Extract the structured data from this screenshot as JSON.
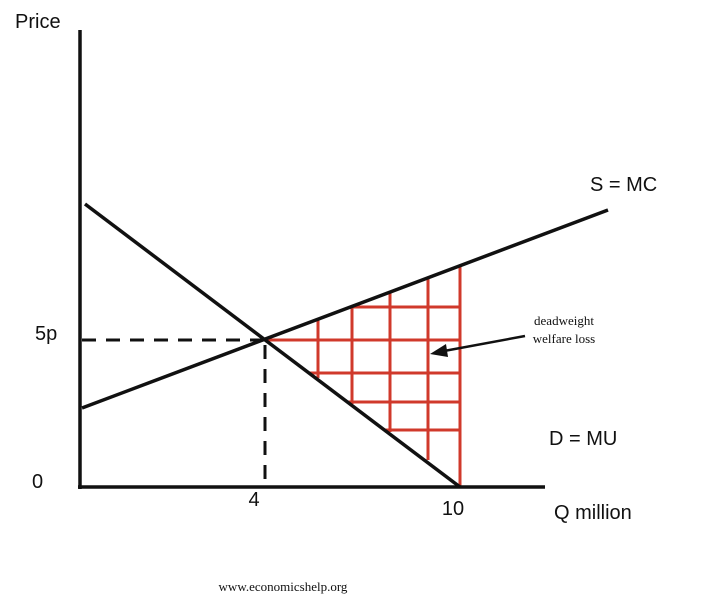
{
  "axes": {
    "y_label": "Price",
    "x_label": "Q million",
    "origin": "0",
    "price_tick": "5p",
    "quantity_ticks": [
      "4",
      "10"
    ]
  },
  "curves": {
    "supply": "S = MC",
    "demand": "D = MU"
  },
  "annotation": {
    "lines": [
      "deadweight",
      "welfare loss"
    ]
  },
  "footer": "www.economicshelp.org"
}
